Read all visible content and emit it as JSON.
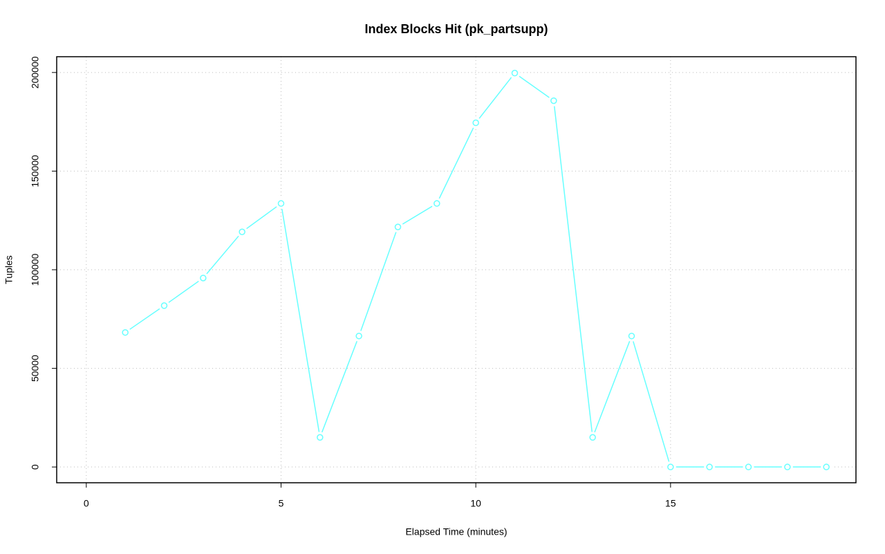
{
  "chart_data": {
    "type": "line",
    "title": "Index Blocks Hit (pk_partsupp)",
    "x_label": "Elapsed Time (minutes)",
    "y_label": "Tuples",
    "x": [
      1,
      2,
      3,
      4,
      5,
      6,
      7,
      8,
      9,
      10,
      11,
      12,
      13,
      14,
      15,
      16,
      17,
      18,
      19
    ],
    "series": [
      {
        "name": "pk_partsupp",
        "color": "#66ffff",
        "values": [
          68200,
          81800,
          95800,
          119200,
          133600,
          15000,
          66400,
          121700,
          133600,
          174500,
          199700,
          185700,
          15000,
          66400,
          0,
          0,
          0,
          0,
          0
        ]
      }
    ],
    "xlim": [
      -0.76,
      19.76
    ],
    "xticks": [
      0,
      5,
      10,
      15
    ],
    "ylim": [
      -8000,
      208000
    ],
    "yticks": [
      0,
      50000,
      100000,
      150000,
      200000
    ],
    "grid": true
  }
}
